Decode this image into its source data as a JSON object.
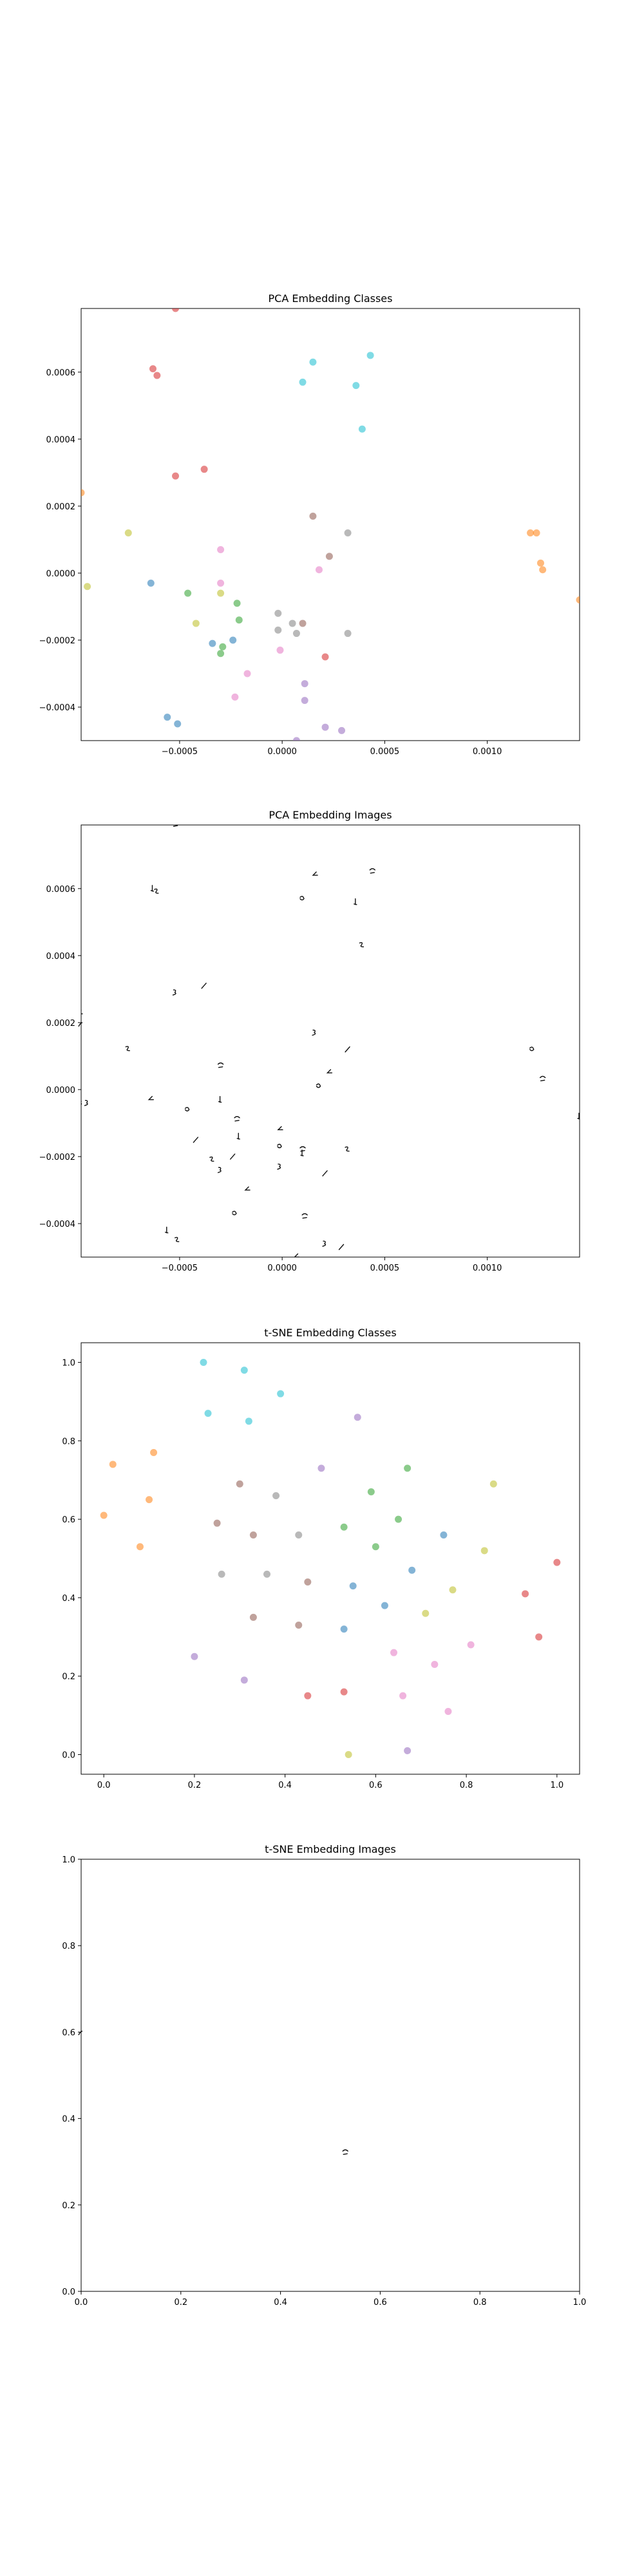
{
  "chart_data": [
    {
      "type": "scatter",
      "title": "PCA Embedding Classes",
      "xlabel": "",
      "ylabel": "",
      "xlim": [
        -0.00098,
        0.00145
      ],
      "ylim": [
        -0.0005,
        0.00079
      ],
      "xticks": [
        -0.0005,
        0.0,
        0.0005,
        0.001
      ],
      "xtick_labels": [
        "−0.0005",
        "0.0000",
        "0.0005",
        "0.0010"
      ],
      "yticks": [
        -0.0004,
        -0.0002,
        0.0,
        0.0002,
        0.0004,
        0.0006
      ],
      "ytick_labels": [
        "−0.0004",
        "−0.0002",
        "0.0000",
        "0.0002",
        "0.0004",
        "0.0006"
      ],
      "grid": false,
      "points": [
        {
          "x": -0.00052,
          "y": 0.00079,
          "c": "#d62728"
        },
        {
          "x": -0.00063,
          "y": 0.00061,
          "c": "#d62728"
        },
        {
          "x": -0.00061,
          "y": 0.00059,
          "c": "#d62728"
        },
        {
          "x": -0.00052,
          "y": 0.00029,
          "c": "#d62728"
        },
        {
          "x": -0.00038,
          "y": 0.00031,
          "c": "#d62728"
        },
        {
          "x": 0.00015,
          "y": 0.00063,
          "c": "#17becf"
        },
        {
          "x": 0.0001,
          "y": 0.00057,
          "c": "#17becf"
        },
        {
          "x": 0.00043,
          "y": 0.00065,
          "c": "#17becf"
        },
        {
          "x": 0.00036,
          "y": 0.00056,
          "c": "#17becf"
        },
        {
          "x": 0.00039,
          "y": 0.00043,
          "c": "#17becf"
        },
        {
          "x": 0.00015,
          "y": 0.00017,
          "c": "#8c564b"
        },
        {
          "x": 0.00032,
          "y": 0.00012,
          "c": "#7f7f7f"
        },
        {
          "x": 0.00023,
          "y": 5e-05,
          "c": "#8c564b"
        },
        {
          "x": 0.00018,
          "y": 1e-05,
          "c": "#e377c2"
        },
        {
          "x": -0.0003,
          "y": 7e-05,
          "c": "#e377c2"
        },
        {
          "x": -0.0003,
          "y": -3e-05,
          "c": "#e377c2"
        },
        {
          "x": -0.0003,
          "y": -6e-05,
          "c": "#bcbd22"
        },
        {
          "x": -0.00075,
          "y": 0.00012,
          "c": "#bcbd22"
        },
        {
          "x": -0.00095,
          "y": -4e-05,
          "c": "#bcbd22"
        },
        {
          "x": -0.00042,
          "y": -0.00015,
          "c": "#bcbd22"
        },
        {
          "x": -0.00064,
          "y": -3e-05,
          "c": "#1f77b4"
        },
        {
          "x": -0.00046,
          "y": -6e-05,
          "c": "#2ca02c"
        },
        {
          "x": -0.00022,
          "y": -9e-05,
          "c": "#2ca02c"
        },
        {
          "x": -0.00021,
          "y": -0.00014,
          "c": "#2ca02c"
        },
        {
          "x": -0.00034,
          "y": -0.00021,
          "c": "#1f77b4"
        },
        {
          "x": -0.0003,
          "y": -0.00024,
          "c": "#2ca02c"
        },
        {
          "x": -0.00029,
          "y": -0.00022,
          "c": "#2ca02c"
        },
        {
          "x": -0.00024,
          "y": -0.0002,
          "c": "#1f77b4"
        },
        {
          "x": -2e-05,
          "y": -0.00012,
          "c": "#7f7f7f"
        },
        {
          "x": 5e-05,
          "y": -0.00015,
          "c": "#7f7f7f"
        },
        {
          "x": -2e-05,
          "y": -0.00017,
          "c": "#7f7f7f"
        },
        {
          "x": 7e-05,
          "y": -0.00018,
          "c": "#7f7f7f"
        },
        {
          "x": 0.0001,
          "y": -0.00015,
          "c": "#8c564b"
        },
        {
          "x": 0.00032,
          "y": -0.00018,
          "c": "#7f7f7f"
        },
        {
          "x": -1e-05,
          "y": -0.00023,
          "c": "#e377c2"
        },
        {
          "x": 0.00021,
          "y": -0.00025,
          "c": "#d62728"
        },
        {
          "x": -0.00017,
          "y": -0.0003,
          "c": "#e377c2"
        },
        {
          "x": -0.00023,
          "y": -0.00037,
          "c": "#e377c2"
        },
        {
          "x": 0.00011,
          "y": -0.00033,
          "c": "#9467bd"
        },
        {
          "x": 0.00011,
          "y": -0.00038,
          "c": "#9467bd"
        },
        {
          "x": -0.00056,
          "y": -0.00043,
          "c": "#1f77b4"
        },
        {
          "x": -0.00051,
          "y": -0.00045,
          "c": "#1f77b4"
        },
        {
          "x": 0.00021,
          "y": -0.00046,
          "c": "#9467bd"
        },
        {
          "x": 0.00029,
          "y": -0.00047,
          "c": "#9467bd"
        },
        {
          "x": 7e-05,
          "y": -0.0005,
          "c": "#9467bd"
        },
        {
          "x": 0.00121,
          "y": 0.00012,
          "c": "#ff7f0e"
        },
        {
          "x": 0.00124,
          "y": 0.00012,
          "c": "#ff7f0e"
        },
        {
          "x": 0.00126,
          "y": 3e-05,
          "c": "#ff7f0e"
        },
        {
          "x": 0.00127,
          "y": 1e-05,
          "c": "#ff7f0e"
        },
        {
          "x": 0.00145,
          "y": -8e-05,
          "c": "#ff7f0e"
        },
        {
          "x": -0.00098,
          "y": 0.00024,
          "c": "#ff7f0e"
        }
      ]
    },
    {
      "type": "scatter",
      "title": "PCA Embedding Images",
      "xlabel": "",
      "ylabel": "",
      "xlim": [
        -0.00098,
        0.00145
      ],
      "ylim": [
        -0.0005,
        0.00079
      ],
      "xticks": [
        -0.0005,
        0.0,
        0.0005,
        0.001
      ],
      "xtick_labels": [
        "−0.0005",
        "0.0000",
        "0.0005",
        "0.0010"
      ],
      "yticks": [
        -0.0004,
        -0.0002,
        0.0,
        0.0002,
        0.0004,
        0.0006
      ],
      "ytick_labels": [
        "−0.0004",
        "−0.0002",
        "0.0000",
        "0.0002",
        "0.0004",
        "0.0006"
      ],
      "grid": false,
      "marker": "digit-image"
    },
    {
      "type": "scatter",
      "title": "t-SNE Embedding Classes",
      "xlabel": "",
      "ylabel": "",
      "xlim": [
        -0.05,
        1.05
      ],
      "ylim": [
        -0.05,
        1.05
      ],
      "xticks": [
        0.0,
        0.2,
        0.4,
        0.6,
        0.8,
        1.0
      ],
      "xtick_labels": [
        "0.0",
        "0.2",
        "0.4",
        "0.6",
        "0.8",
        "1.0"
      ],
      "yticks": [
        0.0,
        0.2,
        0.4,
        0.6,
        0.8,
        1.0
      ],
      "ytick_labels": [
        "0.0",
        "0.2",
        "0.4",
        "0.6",
        "0.8",
        "1.0"
      ],
      "grid": false,
      "points": [
        {
          "x": 0.22,
          "y": 1.0,
          "c": "#17becf"
        },
        {
          "x": 0.31,
          "y": 0.98,
          "c": "#17becf"
        },
        {
          "x": 0.39,
          "y": 0.92,
          "c": "#17becf"
        },
        {
          "x": 0.23,
          "y": 0.87,
          "c": "#17becf"
        },
        {
          "x": 0.32,
          "y": 0.85,
          "c": "#17becf"
        },
        {
          "x": 0.56,
          "y": 0.86,
          "c": "#9467bd"
        },
        {
          "x": 0.02,
          "y": 0.74,
          "c": "#ff7f0e"
        },
        {
          "x": 0.11,
          "y": 0.77,
          "c": "#ff7f0e"
        },
        {
          "x": 0.0,
          "y": 0.61,
          "c": "#ff7f0e"
        },
        {
          "x": 0.1,
          "y": 0.65,
          "c": "#ff7f0e"
        },
        {
          "x": 0.08,
          "y": 0.53,
          "c": "#ff7f0e"
        },
        {
          "x": 0.48,
          "y": 0.73,
          "c": "#9467bd"
        },
        {
          "x": 0.67,
          "y": 0.73,
          "c": "#2ca02c"
        },
        {
          "x": 0.86,
          "y": 0.69,
          "c": "#bcbd22"
        },
        {
          "x": 0.3,
          "y": 0.69,
          "c": "#8c564b"
        },
        {
          "x": 0.38,
          "y": 0.66,
          "c": "#7f7f7f"
        },
        {
          "x": 0.59,
          "y": 0.67,
          "c": "#2ca02c"
        },
        {
          "x": 0.25,
          "y": 0.59,
          "c": "#8c564b"
        },
        {
          "x": 0.33,
          "y": 0.56,
          "c": "#8c564b"
        },
        {
          "x": 0.43,
          "y": 0.56,
          "c": "#7f7f7f"
        },
        {
          "x": 0.53,
          "y": 0.58,
          "c": "#2ca02c"
        },
        {
          "x": 0.65,
          "y": 0.6,
          "c": "#2ca02c"
        },
        {
          "x": 0.6,
          "y": 0.53,
          "c": "#2ca02c"
        },
        {
          "x": 0.75,
          "y": 0.56,
          "c": "#1f77b4"
        },
        {
          "x": 0.84,
          "y": 0.52,
          "c": "#bcbd22"
        },
        {
          "x": 0.26,
          "y": 0.46,
          "c": "#7f7f7f"
        },
        {
          "x": 0.36,
          "y": 0.46,
          "c": "#7f7f7f"
        },
        {
          "x": 0.45,
          "y": 0.44,
          "c": "#8c564b"
        },
        {
          "x": 0.55,
          "y": 0.43,
          "c": "#1f77b4"
        },
        {
          "x": 0.68,
          "y": 0.47,
          "c": "#1f77b4"
        },
        {
          "x": 0.77,
          "y": 0.42,
          "c": "#bcbd22"
        },
        {
          "x": 0.93,
          "y": 0.41,
          "c": "#d62728"
        },
        {
          "x": 1.0,
          "y": 0.49,
          "c": "#d62728"
        },
        {
          "x": 0.62,
          "y": 0.38,
          "c": "#1f77b4"
        },
        {
          "x": 0.71,
          "y": 0.36,
          "c": "#bcbd22"
        },
        {
          "x": 0.33,
          "y": 0.35,
          "c": "#8c564b"
        },
        {
          "x": 0.43,
          "y": 0.33,
          "c": "#8c564b"
        },
        {
          "x": 0.53,
          "y": 0.32,
          "c": "#1f77b4"
        },
        {
          "x": 0.96,
          "y": 0.3,
          "c": "#d62728"
        },
        {
          "x": 0.81,
          "y": 0.28,
          "c": "#e377c2"
        },
        {
          "x": 0.64,
          "y": 0.26,
          "c": "#e377c2"
        },
        {
          "x": 0.73,
          "y": 0.23,
          "c": "#e377c2"
        },
        {
          "x": 0.2,
          "y": 0.25,
          "c": "#9467bd"
        },
        {
          "x": 0.31,
          "y": 0.19,
          "c": "#9467bd"
        },
        {
          "x": 0.45,
          "y": 0.15,
          "c": "#d62728"
        },
        {
          "x": 0.53,
          "y": 0.16,
          "c": "#d62728"
        },
        {
          "x": 0.66,
          "y": 0.15,
          "c": "#e377c2"
        },
        {
          "x": 0.76,
          "y": 0.11,
          "c": "#e377c2"
        },
        {
          "x": 0.54,
          "y": 0.0,
          "c": "#bcbd22"
        },
        {
          "x": 0.67,
          "y": 0.01,
          "c": "#9467bd"
        }
      ]
    },
    {
      "type": "scatter",
      "title": "t-SNE Embedding Images",
      "xlabel": "",
      "ylabel": "",
      "xlim": [
        0.0,
        1.0
      ],
      "ylim": [
        0.0,
        1.0
      ],
      "xticks": [
        0.0,
        0.2,
        0.4,
        0.6,
        0.8,
        1.0
      ],
      "xtick_labels": [
        "0.0",
        "0.2",
        "0.4",
        "0.6",
        "0.8",
        "1.0"
      ],
      "yticks": [
        0.0,
        0.2,
        0.4,
        0.6,
        0.8,
        1.0
      ],
      "ytick_labels": [
        "0.0",
        "0.2",
        "0.4",
        "0.6",
        "0.8",
        "1.0"
      ],
      "grid": false,
      "marker": "digit-image"
    }
  ]
}
